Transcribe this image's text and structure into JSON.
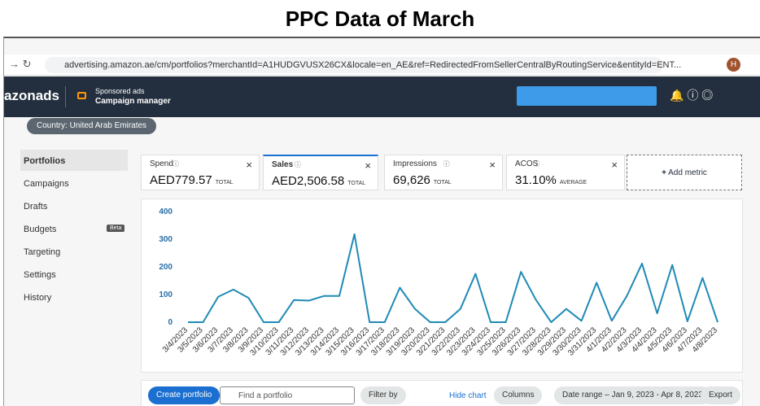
{
  "title": "PPC Data of March",
  "browser": {
    "url": "advertising.amazon.ae/cm/portfolios?merchantId=A1HUDGVUSX26CX&locale=en_AE&ref=RedirectedFromSellerCentralByRoutingService&entityId=ENT...",
    "profile": "H"
  },
  "header": {
    "logo": "azonads",
    "product": "Sponsored ads",
    "subtitle": "Campaign manager"
  },
  "country": "Country: United Arab Emirates",
  "nav": [
    "Portfolios",
    "Campaigns",
    "Drafts",
    "Budgets",
    "Targeting",
    "Settings",
    "History"
  ],
  "nav_badge": "Beta",
  "metrics": [
    {
      "name": "Spend",
      "value": "AED779.57",
      "unit": "TOTAL"
    },
    {
      "name": "Sales",
      "value": "AED2,506.58",
      "unit": "TOTAL"
    },
    {
      "name": "Impressions",
      "value": "69,626",
      "unit": "TOTAL"
    },
    {
      "name": "ACOS",
      "value": "31.10%",
      "unit": "AVERAGE"
    }
  ],
  "add_metric": "Add metric",
  "chart_data": {
    "type": "line",
    "color": "#1f8ab5",
    "categories": [
      "3/4/2023",
      "3/5/2023",
      "3/6/2023",
      "3/7/2023",
      "3/8/2023",
      "3/9/2023",
      "3/10/2023",
      "3/11/2023",
      "3/12/2023",
      "3/13/2023",
      "3/14/2023",
      "3/15/2023",
      "3/16/2023",
      "3/17/2023",
      "3/18/2023",
      "3/19/2023",
      "3/20/2023",
      "3/21/2023",
      "3/22/2023",
      "3/23/2023",
      "3/24/2023",
      "3/25/2023",
      "3/26/2023",
      "3/27/2023",
      "3/28/2023",
      "3/29/2023",
      "3/30/2023",
      "3/31/2023",
      "4/1/2023",
      "4/2/2023",
      "4/3/2023",
      "4/4/2023",
      "4/5/2023",
      "4/6/2023",
      "4/7/2023",
      "4/8/2023"
    ],
    "values": [
      0,
      0,
      92,
      118,
      88,
      0,
      0,
      80,
      78,
      95,
      95,
      318,
      0,
      0,
      125,
      48,
      0,
      0,
      48,
      175,
      0,
      0,
      182,
      80,
      0,
      48,
      5,
      143,
      5,
      95,
      212,
      32,
      207,
      3,
      160,
      0
    ],
    "ylim": [
      0,
      400
    ],
    "yticks": [
      0,
      100,
      200,
      300,
      400
    ],
    "grid": false
  },
  "toolbar": {
    "create": "Create portfolio",
    "search": "Find a portfolio",
    "filter": "Filter by",
    "hide": "Hide chart",
    "columns": "Columns",
    "date_range": "Date range – Jan 9, 2023 - Apr 8, 2023",
    "export": "Export"
  }
}
